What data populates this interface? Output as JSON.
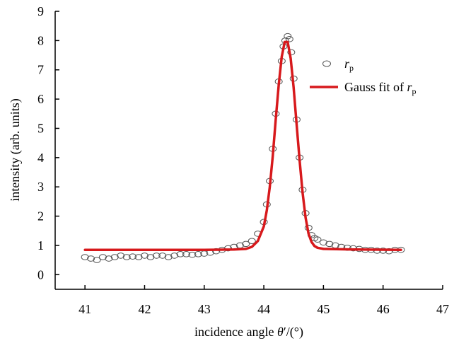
{
  "chart_data": {
    "type": "scatter",
    "xlabel": {
      "prefix": "incidence angle ",
      "symbol": "θ",
      "suffix": "′/(°)"
    },
    "ylabel": "intensity (arb. units)",
    "xlim": [
      40.5,
      47
    ],
    "ylim": [
      -0.5,
      9
    ],
    "x_ticks": [
      41,
      42,
      43,
      44,
      45,
      46,
      47
    ],
    "y_ticks": [
      0,
      1,
      2,
      3,
      4,
      5,
      6,
      7,
      8,
      9
    ],
    "grid": false,
    "legend_position": "top-right",
    "series": [
      {
        "name": {
          "symbol": "r",
          "subscript": "p"
        },
        "kind": "scatter",
        "marker": "open-circle",
        "color": "#555555",
        "x": [
          41.0,
          41.1,
          41.2,
          41.3,
          41.4,
          41.5,
          41.6,
          41.7,
          41.8,
          41.9,
          42.0,
          42.1,
          42.2,
          42.3,
          42.4,
          42.5,
          42.6,
          42.7,
          42.8,
          42.9,
          43.0,
          43.1,
          43.2,
          43.3,
          43.4,
          43.5,
          43.6,
          43.7,
          43.8,
          43.9,
          44.0,
          44.05,
          44.1,
          44.15,
          44.2,
          44.25,
          44.3,
          44.33,
          44.36,
          44.4,
          44.43,
          44.46,
          44.5,
          44.55,
          44.6,
          44.65,
          44.7,
          44.75,
          44.8,
          44.85,
          44.9,
          45.0,
          45.1,
          45.2,
          45.3,
          45.4,
          45.5,
          45.6,
          45.7,
          45.8,
          45.9,
          46.0,
          46.1,
          46.2,
          46.3
        ],
        "y": [
          0.6,
          0.55,
          0.5,
          0.6,
          0.55,
          0.6,
          0.65,
          0.6,
          0.62,
          0.6,
          0.65,
          0.6,
          0.65,
          0.65,
          0.6,
          0.65,
          0.7,
          0.7,
          0.68,
          0.7,
          0.72,
          0.75,
          0.8,
          0.85,
          0.9,
          0.95,
          1.0,
          1.05,
          1.15,
          1.4,
          1.8,
          2.4,
          3.2,
          4.3,
          5.5,
          6.6,
          7.3,
          7.8,
          8.0,
          8.15,
          8.05,
          7.6,
          6.7,
          5.3,
          4.0,
          2.9,
          2.1,
          1.6,
          1.35,
          1.25,
          1.2,
          1.1,
          1.05,
          1.0,
          0.95,
          0.92,
          0.9,
          0.88,
          0.85,
          0.85,
          0.82,
          0.82,
          0.8,
          0.85,
          0.85
        ]
      },
      {
        "name": {
          "prefix": "Gauss fit of ",
          "symbol": "r",
          "subscript": "p"
        },
        "kind": "line",
        "color": "#d7191c",
        "x": [
          41.0,
          42.0,
          43.0,
          43.5,
          43.7,
          43.8,
          43.9,
          44.0,
          44.05,
          44.1,
          44.15,
          44.2,
          44.25,
          44.3,
          44.35,
          44.4,
          44.45,
          44.5,
          44.55,
          44.6,
          44.65,
          44.7,
          44.75,
          44.8,
          44.85,
          44.9,
          45.0,
          45.5,
          46.3
        ],
        "y": [
          0.85,
          0.85,
          0.85,
          0.86,
          0.88,
          0.95,
          1.15,
          1.65,
          2.2,
          3.0,
          4.05,
          5.3,
          6.5,
          7.45,
          7.95,
          7.95,
          7.4,
          6.4,
          5.15,
          3.9,
          2.8,
          1.95,
          1.4,
          1.12,
          0.98,
          0.92,
          0.88,
          0.86,
          0.85
        ]
      }
    ]
  }
}
